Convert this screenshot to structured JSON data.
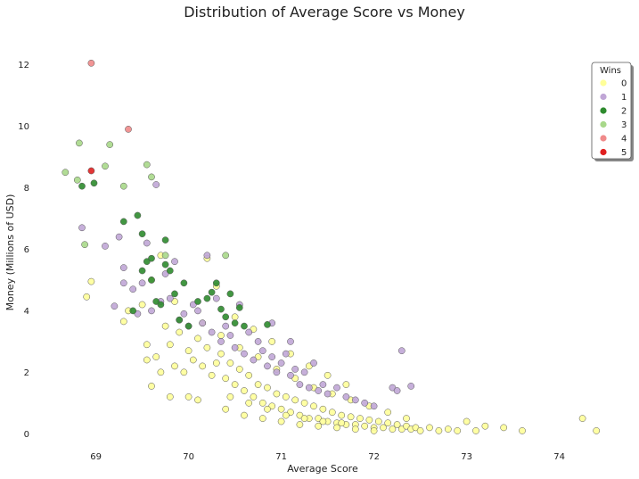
{
  "chart_data": {
    "type": "scatter",
    "title": "Distribution of Average Score vs Money",
    "xlabel": "Average Score",
    "ylabel": "Money (Millions of USD)",
    "xlim": [
      68.35,
      74.6
    ],
    "ylim": [
      -0.6,
      13.0
    ],
    "xticks": [
      69,
      70,
      71,
      72,
      73,
      74
    ],
    "yticks": [
      0,
      2,
      4,
      6,
      8,
      10,
      12
    ],
    "grid": false,
    "legend": {
      "title": "Wins",
      "placement": "top-right"
    },
    "series": [
      {
        "name": "0",
        "color": "#ffff99",
        "points": [
          [
            68.9,
            4.45
          ],
          [
            68.95,
            4.95
          ],
          [
            69.3,
            3.65
          ],
          [
            69.35,
            4.0
          ],
          [
            69.55,
            2.9
          ],
          [
            69.55,
            2.4
          ],
          [
            69.6,
            1.55
          ],
          [
            69.65,
            2.5
          ],
          [
            69.7,
            2.0
          ],
          [
            69.75,
            3.5
          ],
          [
            69.8,
            2.9
          ],
          [
            69.85,
            2.2
          ],
          [
            69.9,
            3.3
          ],
          [
            69.95,
            2.0
          ],
          [
            70.0,
            2.7
          ],
          [
            70.05,
            2.4
          ],
          [
            70.1,
            3.1
          ],
          [
            70.15,
            2.2
          ],
          [
            70.2,
            2.8
          ],
          [
            70.25,
            1.9
          ],
          [
            70.3,
            2.3
          ],
          [
            70.35,
            2.6
          ],
          [
            70.4,
            1.8
          ],
          [
            70.45,
            2.3
          ],
          [
            70.5,
            1.6
          ],
          [
            70.55,
            2.1
          ],
          [
            70.6,
            1.4
          ],
          [
            70.65,
            1.9
          ],
          [
            70.7,
            1.2
          ],
          [
            70.75,
            1.6
          ],
          [
            70.8,
            1.0
          ],
          [
            70.85,
            1.5
          ],
          [
            70.9,
            0.9
          ],
          [
            70.95,
            1.3
          ],
          [
            71.0,
            0.8
          ],
          [
            71.05,
            1.2
          ],
          [
            71.1,
            0.7
          ],
          [
            71.15,
            1.1
          ],
          [
            71.2,
            0.6
          ],
          [
            71.25,
            1.0
          ],
          [
            71.3,
            0.5
          ],
          [
            71.35,
            0.9
          ],
          [
            71.4,
            0.5
          ],
          [
            71.45,
            0.8
          ],
          [
            71.5,
            0.4
          ],
          [
            71.55,
            0.7
          ],
          [
            71.6,
            0.35
          ],
          [
            71.65,
            0.6
          ],
          [
            71.7,
            0.3
          ],
          [
            71.75,
            0.55
          ],
          [
            71.8,
            0.3
          ],
          [
            71.85,
            0.5
          ],
          [
            71.9,
            0.25
          ],
          [
            71.95,
            0.45
          ],
          [
            72.0,
            0.2
          ],
          [
            72.05,
            0.4
          ],
          [
            72.1,
            0.2
          ],
          [
            72.15,
            0.35
          ],
          [
            72.2,
            0.15
          ],
          [
            72.25,
            0.3
          ],
          [
            72.3,
            0.15
          ],
          [
            72.35,
            0.25
          ],
          [
            72.4,
            0.15
          ],
          [
            72.45,
            0.2
          ],
          [
            72.5,
            0.1
          ],
          [
            72.6,
            0.2
          ],
          [
            72.7,
            0.1
          ],
          [
            72.8,
            0.15
          ],
          [
            72.9,
            0.1
          ],
          [
            73.0,
            0.4
          ],
          [
            73.1,
            0.1
          ],
          [
            73.2,
            0.25
          ],
          [
            73.4,
            0.2
          ],
          [
            73.6,
            0.1
          ],
          [
            74.25,
            0.5
          ],
          [
            74.4,
            0.1
          ],
          [
            70.2,
            5.7
          ],
          [
            70.3,
            4.8
          ],
          [
            69.85,
            4.3
          ],
          [
            70.0,
            1.2
          ],
          [
            69.8,
            1.2
          ],
          [
            70.1,
            1.1
          ],
          [
            70.4,
            0.8
          ],
          [
            70.6,
            0.6
          ],
          [
            70.8,
            0.5
          ],
          [
            71.0,
            0.4
          ],
          [
            71.2,
            0.3
          ],
          [
            71.4,
            0.25
          ],
          [
            71.6,
            0.2
          ],
          [
            71.8,
            0.15
          ],
          [
            72.0,
            0.1
          ],
          [
            70.15,
            3.6
          ],
          [
            70.35,
            3.2
          ],
          [
            70.55,
            2.8
          ],
          [
            70.75,
            2.5
          ],
          [
            70.95,
            2.1
          ],
          [
            71.15,
            1.8
          ],
          [
            71.35,
            1.5
          ],
          [
            71.55,
            1.3
          ],
          [
            71.75,
            1.1
          ],
          [
            71.95,
            0.9
          ],
          [
            72.15,
            0.7
          ],
          [
            72.35,
            0.5
          ],
          [
            70.45,
            1.2
          ],
          [
            70.65,
            1.0
          ],
          [
            70.85,
            0.8
          ],
          [
            71.05,
            0.6
          ],
          [
            71.25,
            0.5
          ],
          [
            71.45,
            0.4
          ],
          [
            71.65,
            0.35
          ],
          [
            69.7,
            5.8
          ],
          [
            69.6,
            5.0
          ],
          [
            69.5,
            4.2
          ],
          [
            70.5,
            3.8
          ],
          [
            70.7,
            3.4
          ],
          [
            70.9,
            3.0
          ],
          [
            71.1,
            2.6
          ],
          [
            71.3,
            2.2
          ],
          [
            71.5,
            1.9
          ],
          [
            71.7,
            1.6
          ]
        ]
      },
      {
        "name": "1",
        "color": "#c0a6d6",
        "points": [
          [
            68.85,
            6.7
          ],
          [
            69.1,
            6.1
          ],
          [
            69.2,
            4.15
          ],
          [
            69.25,
            6.4
          ],
          [
            69.3,
            5.4
          ],
          [
            69.3,
            4.9
          ],
          [
            69.4,
            4.7
          ],
          [
            69.45,
            3.9
          ],
          [
            69.5,
            4.9
          ],
          [
            69.55,
            6.2
          ],
          [
            69.6,
            4.0
          ],
          [
            69.65,
            8.1
          ],
          [
            69.7,
            4.3
          ],
          [
            69.75,
            5.2
          ],
          [
            69.8,
            4.4
          ],
          [
            69.85,
            5.6
          ],
          [
            69.9,
            3.7
          ],
          [
            69.95,
            3.9
          ],
          [
            70.0,
            3.5
          ],
          [
            70.05,
            4.2
          ],
          [
            70.1,
            4.0
          ],
          [
            70.15,
            3.6
          ],
          [
            70.2,
            5.8
          ],
          [
            70.25,
            3.3
          ],
          [
            70.3,
            4.4
          ],
          [
            70.35,
            3.0
          ],
          [
            70.4,
            3.5
          ],
          [
            70.45,
            3.2
          ],
          [
            70.5,
            2.8
          ],
          [
            70.55,
            4.2
          ],
          [
            70.6,
            2.6
          ],
          [
            70.65,
            3.3
          ],
          [
            70.7,
            2.4
          ],
          [
            70.75,
            3.0
          ],
          [
            70.8,
            2.7
          ],
          [
            70.85,
            2.2
          ],
          [
            70.9,
            2.5
          ],
          [
            70.95,
            2.0
          ],
          [
            71.0,
            2.3
          ],
          [
            71.05,
            2.6
          ],
          [
            71.1,
            1.9
          ],
          [
            71.15,
            2.1
          ],
          [
            71.2,
            1.6
          ],
          [
            71.25,
            2.0
          ],
          [
            71.3,
            1.5
          ],
          [
            71.35,
            2.3
          ],
          [
            71.4,
            1.4
          ],
          [
            71.45,
            1.6
          ],
          [
            71.5,
            1.3
          ],
          [
            71.6,
            1.5
          ],
          [
            71.7,
            1.2
          ],
          [
            71.8,
            1.1
          ],
          [
            71.9,
            1.0
          ],
          [
            72.0,
            0.9
          ],
          [
            72.2,
            1.5
          ],
          [
            72.25,
            1.4
          ],
          [
            72.3,
            2.7
          ],
          [
            72.4,
            1.55
          ],
          [
            70.9,
            3.6
          ],
          [
            71.1,
            3.0
          ]
        ]
      },
      {
        "name": "2",
        "color": "#2e8b2e",
        "points": [
          [
            68.85,
            8.05
          ],
          [
            68.98,
            8.15
          ],
          [
            69.3,
            6.9
          ],
          [
            69.4,
            4.0
          ],
          [
            69.45,
            7.1
          ],
          [
            69.5,
            6.5
          ],
          [
            69.5,
            5.3
          ],
          [
            69.55,
            5.6
          ],
          [
            69.6,
            5.0
          ],
          [
            69.65,
            4.3
          ],
          [
            69.7,
            4.2
          ],
          [
            69.75,
            6.3
          ],
          [
            69.75,
            5.5
          ],
          [
            69.8,
            5.3
          ],
          [
            69.85,
            4.55
          ],
          [
            69.9,
            3.7
          ],
          [
            69.95,
            4.9
          ],
          [
            70.0,
            3.5
          ],
          [
            70.1,
            4.3
          ],
          [
            70.2,
            4.4
          ],
          [
            70.25,
            4.6
          ],
          [
            70.3,
            4.9
          ],
          [
            70.35,
            4.05
          ],
          [
            70.4,
            3.8
          ],
          [
            70.45,
            4.55
          ],
          [
            70.5,
            3.6
          ],
          [
            70.55,
            4.1
          ],
          [
            70.6,
            3.5
          ],
          [
            70.85,
            3.55
          ],
          [
            69.6,
            5.7
          ]
        ]
      },
      {
        "name": "3",
        "color": "#a8d88a",
        "points": [
          [
            68.67,
            8.5
          ],
          [
            68.8,
            8.25
          ],
          [
            68.82,
            9.45
          ],
          [
            68.88,
            6.15
          ],
          [
            69.1,
            8.7
          ],
          [
            69.15,
            9.4
          ],
          [
            69.3,
            8.05
          ],
          [
            69.55,
            8.75
          ],
          [
            69.6,
            8.35
          ],
          [
            69.75,
            5.8
          ],
          [
            70.4,
            5.8
          ]
        ]
      },
      {
        "name": "4",
        "color": "#f08a8a",
        "points": [
          [
            68.95,
            12.05
          ],
          [
            69.35,
            9.9
          ]
        ]
      },
      {
        "name": "5",
        "color": "#e02020",
        "points": [
          [
            68.95,
            8.55
          ]
        ]
      }
    ]
  }
}
